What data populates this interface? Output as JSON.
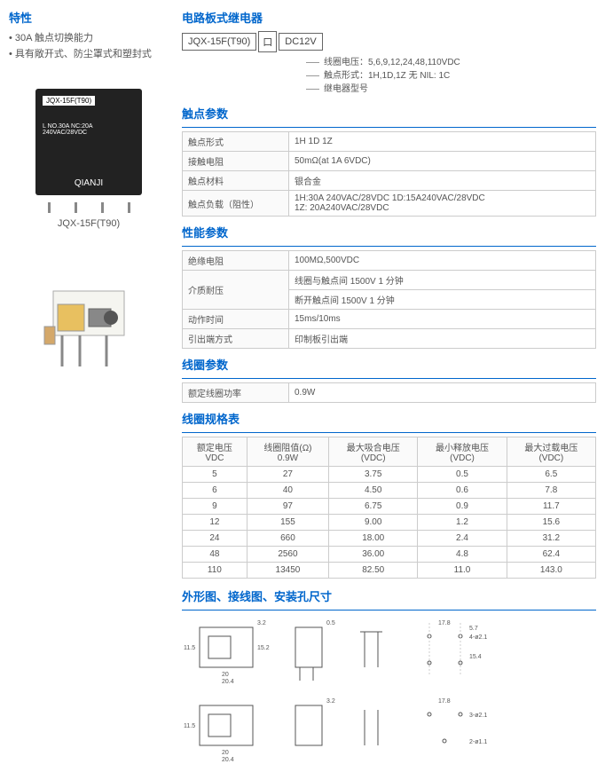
{
  "left": {
    "features_title": "特性",
    "features": [
      "30A 触点切换能力",
      "具有敞开式、防尘罩式和塑封式"
    ],
    "product_label_top": "JQX-15F(T90)",
    "product_label_mid": "L NO.30A NC:20A 240VAC/28VDC",
    "product_brand": "QIANJI",
    "caption": "JQX-15F(T90)"
  },
  "right": {
    "model_title": "电路板式继电器",
    "model_boxes": [
      "JQX-15F(T90)",
      "口",
      "DC12V"
    ],
    "callouts": [
      "线圈电压：5,6,9,12,24,48,110VDC",
      "触点形式：1H,1D,1Z  无 NIL: 1C",
      "继电器型号"
    ],
    "contact_title": "触点参数",
    "contact_rows": [
      {
        "k": "触点形式",
        "v": "1H 1D 1Z"
      },
      {
        "k": "接触电阻",
        "v": "50mΩ(at 1A 6VDC)"
      },
      {
        "k": "触点材料",
        "v": "银合金"
      },
      {
        "k": "触点负载（阻性）",
        "v": "1H:30A 240VAC/28VDC  1D:15A240VAC/28VDC\n1Z: 20A240VAC/28VDC"
      }
    ],
    "perf_title": "性能参数",
    "perf_rows": [
      {
        "k": "绝缘电阻",
        "v": "100MΩ,500VDC"
      },
      {
        "k": "介质耐压",
        "v": "线圈与触点间       1500V  1 分钟",
        "v2": "断开触点间       1500V  1 分钟"
      },
      {
        "k": "动作时间",
        "v": "15ms/10ms"
      },
      {
        "k": "引出端方式",
        "v": "印制板引出端"
      }
    ],
    "coil_title": "线圈参数",
    "coil_rows": [
      {
        "k": "额定线圈功率",
        "v": "0.9W"
      }
    ],
    "spec_title": "线圈规格表",
    "spec_headers": [
      "额定电压\nVDC",
      "线圈阻值(Ω)\n0.9W",
      "最大吸合电压\n(VDC)",
      "最小释放电压\n(VDC)",
      "最大过载电压\n(VDC)"
    ],
    "spec_rows": [
      [
        "5",
        "27",
        "3.75",
        "0.5",
        "6.5"
      ],
      [
        "6",
        "40",
        "4.50",
        "0.6",
        "7.8"
      ],
      [
        "9",
        "97",
        "6.75",
        "0.9",
        "11.7"
      ],
      [
        "12",
        "155",
        "9.00",
        "1.2",
        "15.6"
      ],
      [
        "24",
        "660",
        "18.00",
        "2.4",
        "31.2"
      ],
      [
        "48",
        "2560",
        "36.00",
        "4.8",
        "62.4"
      ],
      [
        "110",
        "13450",
        "82.50",
        "11.0",
        "143.0"
      ]
    ],
    "dim_title": "外形图、接线图、安装孔尺寸",
    "dim_labels": {
      "w1": "20",
      "w2": "20.4",
      "w3": "3.2",
      "h1": "11.5",
      "h2": "15.2",
      "h3": "0.5",
      "p1": "5.7",
      "p2": "17.8",
      "d1": "4-ø2.1",
      "d2": "3-ø2.1",
      "d3": "2-ø1.1",
      "d4": "15.4"
    }
  },
  "colors": {
    "title": "#0066cc",
    "border": "#cccccc",
    "text": "#555555"
  }
}
